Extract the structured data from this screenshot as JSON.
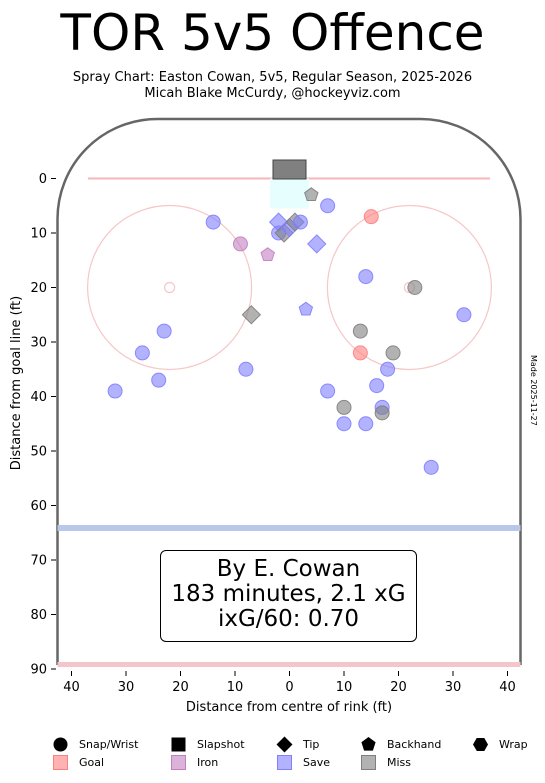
{
  "title": "TOR 5v5 Offence",
  "subtitle_line1": "Spray Chart: Easton Cowan, 5v5, Regular Season, 2025-2026",
  "subtitle_line2": "Micah Blake McCurdy, @hockeyviz.com",
  "made_note": "Made 2025-11-27",
  "summary": {
    "line1": "By E. Cowan",
    "line2": "183 minutes, 2.1 xG",
    "line3": "ixG/60: 0.70"
  },
  "legend": {
    "shapes": [
      {
        "label": "Snap/Wrist",
        "shape": "circle"
      },
      {
        "label": "Slapshot",
        "shape": "square"
      },
      {
        "label": "Tip",
        "shape": "diamond"
      },
      {
        "label": "Backhand",
        "shape": "pentagon"
      },
      {
        "label": "Wrap",
        "shape": "hexagon"
      }
    ],
    "outcomes": [
      {
        "label": "Goal",
        "color": "#ff7f7f"
      },
      {
        "label": "Iron",
        "color": "#c27fc2"
      },
      {
        "label": "Save",
        "color": "#7f7fff"
      },
      {
        "label": "Miss",
        "color": "#7f7f7f"
      }
    ]
  },
  "chart_data": {
    "type": "scatter",
    "title": "TOR 5v5 Offence",
    "xlabel": "Distance from centre of rink (ft)",
    "ylabel": "Distance from goal line (ft)",
    "xlim": [
      42.5,
      -42.5
    ],
    "ylim": [
      0,
      90
    ],
    "x_ticks": [
      40,
      30,
      20,
      10,
      0,
      10,
      20,
      30,
      40
    ],
    "y_ticks": [
      0,
      10,
      20,
      30,
      40,
      50,
      60,
      70,
      80,
      90
    ],
    "grid": false,
    "legend": "bottom",
    "colors": {
      "goal": "#ff7f7f",
      "iron": "#c27fc2",
      "save": "#7f7fff",
      "miss": "#7f7f7f"
    },
    "shots": [
      {
        "x": -14,
        "y": 8,
        "shape": "circle",
        "result": "save"
      },
      {
        "x": -9,
        "y": 12,
        "shape": "circle",
        "result": "iron"
      },
      {
        "x": -4,
        "y": 14,
        "shape": "pentagon",
        "result": "iron"
      },
      {
        "x": -2,
        "y": 8,
        "shape": "diamond",
        "result": "save"
      },
      {
        "x": -2,
        "y": 10,
        "shape": "circle",
        "result": "save"
      },
      {
        "x": -1,
        "y": 10,
        "shape": "diamond",
        "result": "miss"
      },
      {
        "x": 0,
        "y": 9,
        "shape": "diamond",
        "result": "save"
      },
      {
        "x": 1,
        "y": 8,
        "shape": "diamond",
        "result": "miss"
      },
      {
        "x": 2,
        "y": 8,
        "shape": "circle",
        "result": "save"
      },
      {
        "x": 4,
        "y": 3,
        "shape": "pentagon",
        "result": "miss"
      },
      {
        "x": 5,
        "y": 12,
        "shape": "diamond",
        "result": "save"
      },
      {
        "x": 7,
        "y": 5,
        "shape": "circle",
        "result": "save"
      },
      {
        "x": 15,
        "y": 7,
        "shape": "circle",
        "result": "goal"
      },
      {
        "x": 14,
        "y": 18,
        "shape": "circle",
        "result": "save"
      },
      {
        "x": 23,
        "y": 20,
        "shape": "circle",
        "result": "miss"
      },
      {
        "x": 32,
        "y": 25,
        "shape": "circle",
        "result": "save"
      },
      {
        "x": -7,
        "y": 25,
        "shape": "diamond",
        "result": "miss"
      },
      {
        "x": 3,
        "y": 24,
        "shape": "pentagon",
        "result": "save"
      },
      {
        "x": -23,
        "y": 28,
        "shape": "circle",
        "result": "save"
      },
      {
        "x": -27,
        "y": 32,
        "shape": "circle",
        "result": "save"
      },
      {
        "x": -24,
        "y": 37,
        "shape": "circle",
        "result": "save"
      },
      {
        "x": -32,
        "y": 39,
        "shape": "circle",
        "result": "save"
      },
      {
        "x": -8,
        "y": 35,
        "shape": "circle",
        "result": "save"
      },
      {
        "x": 13,
        "y": 28,
        "shape": "circle",
        "result": "miss"
      },
      {
        "x": 13,
        "y": 32,
        "shape": "circle",
        "result": "goal"
      },
      {
        "x": 19,
        "y": 32,
        "shape": "circle",
        "result": "miss"
      },
      {
        "x": 18,
        "y": 35,
        "shape": "circle",
        "result": "save"
      },
      {
        "x": 16,
        "y": 38,
        "shape": "circle",
        "result": "save"
      },
      {
        "x": 7,
        "y": 39,
        "shape": "circle",
        "result": "save"
      },
      {
        "x": 10,
        "y": 42,
        "shape": "circle",
        "result": "miss"
      },
      {
        "x": 17,
        "y": 42,
        "shape": "circle",
        "result": "save"
      },
      {
        "x": 17,
        "y": 43,
        "shape": "circle",
        "result": "miss"
      },
      {
        "x": 10,
        "y": 45,
        "shape": "circle",
        "result": "save"
      },
      {
        "x": 14,
        "y": 45,
        "shape": "circle",
        "result": "save"
      },
      {
        "x": 26,
        "y": 53,
        "shape": "circle",
        "result": "save"
      }
    ]
  }
}
